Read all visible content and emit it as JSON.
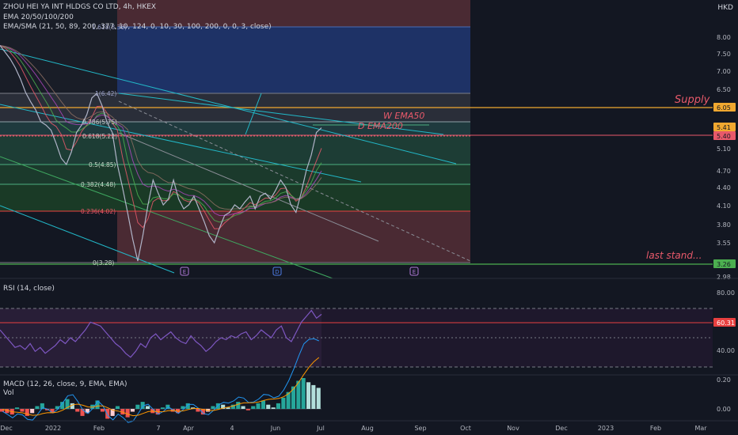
{
  "header": {
    "symbol_line": "ZHOU HEI YA INT HLDGS CO LTD, 4h, HKEX",
    "indicator_1": "EMA 20/50/100/200",
    "indicator_2": "EMA/SMA (21, 50, 89, 200, 377, 10, 124, 0, 10, 30, 100, 200, 0, 0, 3, close)",
    "currency": "HKD"
  },
  "chart_data": [
    {
      "type": "line",
      "panel": "price",
      "y_axis_ticks": [
        "8.00",
        "7.50",
        "7.00",
        "6.50",
        "6.05",
        "5.41",
        "5.40",
        "5.10",
        "4.70",
        "4.40",
        "4.10",
        "3.80",
        "3.55",
        "3.26",
        "2.98"
      ],
      "price_badges": [
        {
          "label": "6.05",
          "color": "#f0a830"
        },
        {
          "label": "5.41",
          "color": "#f0a830"
        },
        {
          "label": "5.40",
          "color": "#e8596a"
        },
        {
          "label": "3.26",
          "color": "#4caf50"
        }
      ],
      "fib_levels": [
        {
          "label": "1.618(8.36)",
          "value": 8.36
        },
        {
          "label": "1(6.42)",
          "value": 6.42
        },
        {
          "label": "0.786(5.75)",
          "value": 5.75
        },
        {
          "label": "0.618(5.22)",
          "value": 5.22
        },
        {
          "label": "0.5(4.85)",
          "value": 4.85
        },
        {
          "label": "0.382(4.48)",
          "value": 4.48
        },
        {
          "label": "0.236(4.02)",
          "value": 4.02
        },
        {
          "label": "0(3.28)",
          "value": 3.28
        }
      ],
      "annotations": [
        "Supply",
        "W EMA50",
        "D EMA200",
        "last stand..."
      ],
      "event_markers": [
        "E",
        "D",
        "E"
      ],
      "x_axis_ticks": [
        "Dec",
        "2022",
        "Feb",
        "7",
        "Apr",
        "4",
        "Jun",
        "Jul",
        "Aug",
        "Sep",
        "Oct",
        "Nov",
        "Dec",
        "2023",
        "Feb",
        "Mar"
      ],
      "series": [
        {
          "values": [
            7.75,
            7.55,
            7.35,
            7.1,
            6.8,
            6.45,
            6.2,
            6.0,
            5.75,
            5.55,
            5.35,
            5.15,
            4.95,
            4.85,
            5.05,
            5.3,
            5.55,
            5.9,
            6.3,
            6.42,
            6.1,
            5.7,
            5.3,
            4.85,
            4.4,
            4.0,
            3.6,
            3.3,
            3.65,
            4.1,
            4.55,
            4.3,
            4.1,
            4.2,
            4.55,
            4.2,
            4.05,
            4.1,
            4.25,
            4.05,
            3.85,
            3.65,
            3.55,
            3.75,
            3.95,
            4.0,
            4.1,
            4.05,
            4.15,
            4.25,
            4.05,
            4.25,
            4.3,
            4.2,
            4.35,
            4.55,
            4.4,
            4.1,
            4.0,
            4.3,
            4.7,
            5.0,
            5.3,
            5.4
          ]
        }
      ]
    },
    {
      "type": "line",
      "panel": "rsi",
      "title": "RSI (14, close)",
      "y_axis_ticks": [
        "80.00",
        "60.31",
        "40.00"
      ],
      "current": "60.31",
      "series": [
        {
          "values": [
            58,
            52,
            46,
            40,
            42,
            38,
            44,
            36,
            40,
            34,
            38,
            42,
            48,
            44,
            50,
            46,
            52,
            58,
            66,
            64,
            62,
            56,
            50,
            44,
            40,
            34,
            30,
            36,
            44,
            40,
            50,
            54,
            48,
            52,
            56,
            50,
            46,
            44,
            52,
            46,
            42,
            36,
            40,
            46,
            50,
            48,
            52,
            50,
            54,
            56,
            48,
            52,
            58,
            54,
            50,
            58,
            62,
            50,
            46,
            56,
            66,
            72,
            78,
            70,
            74
          ]
        }
      ]
    },
    {
      "type": "bar",
      "panel": "macd",
      "title": "MACD (12, 26, close, 9, EMA, EMA)",
      "subtitle": "Vol",
      "y_axis_ticks": [
        "0.20",
        "0.00"
      ],
      "series": [
        {
          "values": [
            -0.02,
            -0.03,
            -0.04,
            0.01,
            -0.02,
            -0.05,
            -0.03,
            0.02,
            0.04,
            -0.01,
            -0.03,
            0.02,
            0.05,
            0.07,
            0.04,
            -0.02,
            -0.05,
            -0.03,
            0.03,
            0.06,
            -0.02,
            -0.07,
            -0.05,
            0.02,
            -0.04,
            -0.06,
            -0.02,
            0.03,
            0.05,
            0.02,
            -0.03,
            -0.04,
            0.01,
            0.03,
            -0.02,
            -0.03,
            0.02,
            0.04,
            0.01,
            -0.02,
            -0.04,
            -0.02,
            0.02,
            0.04,
            0.03,
            0.01,
            0.03,
            0.05,
            0.02,
            -0.01,
            0.02,
            0.04,
            0.06,
            0.03,
            0.01,
            0.04,
            0.08,
            0.12,
            0.16,
            0.2,
            0.22,
            0.19,
            0.17,
            0.15
          ]
        }
      ]
    }
  ]
}
